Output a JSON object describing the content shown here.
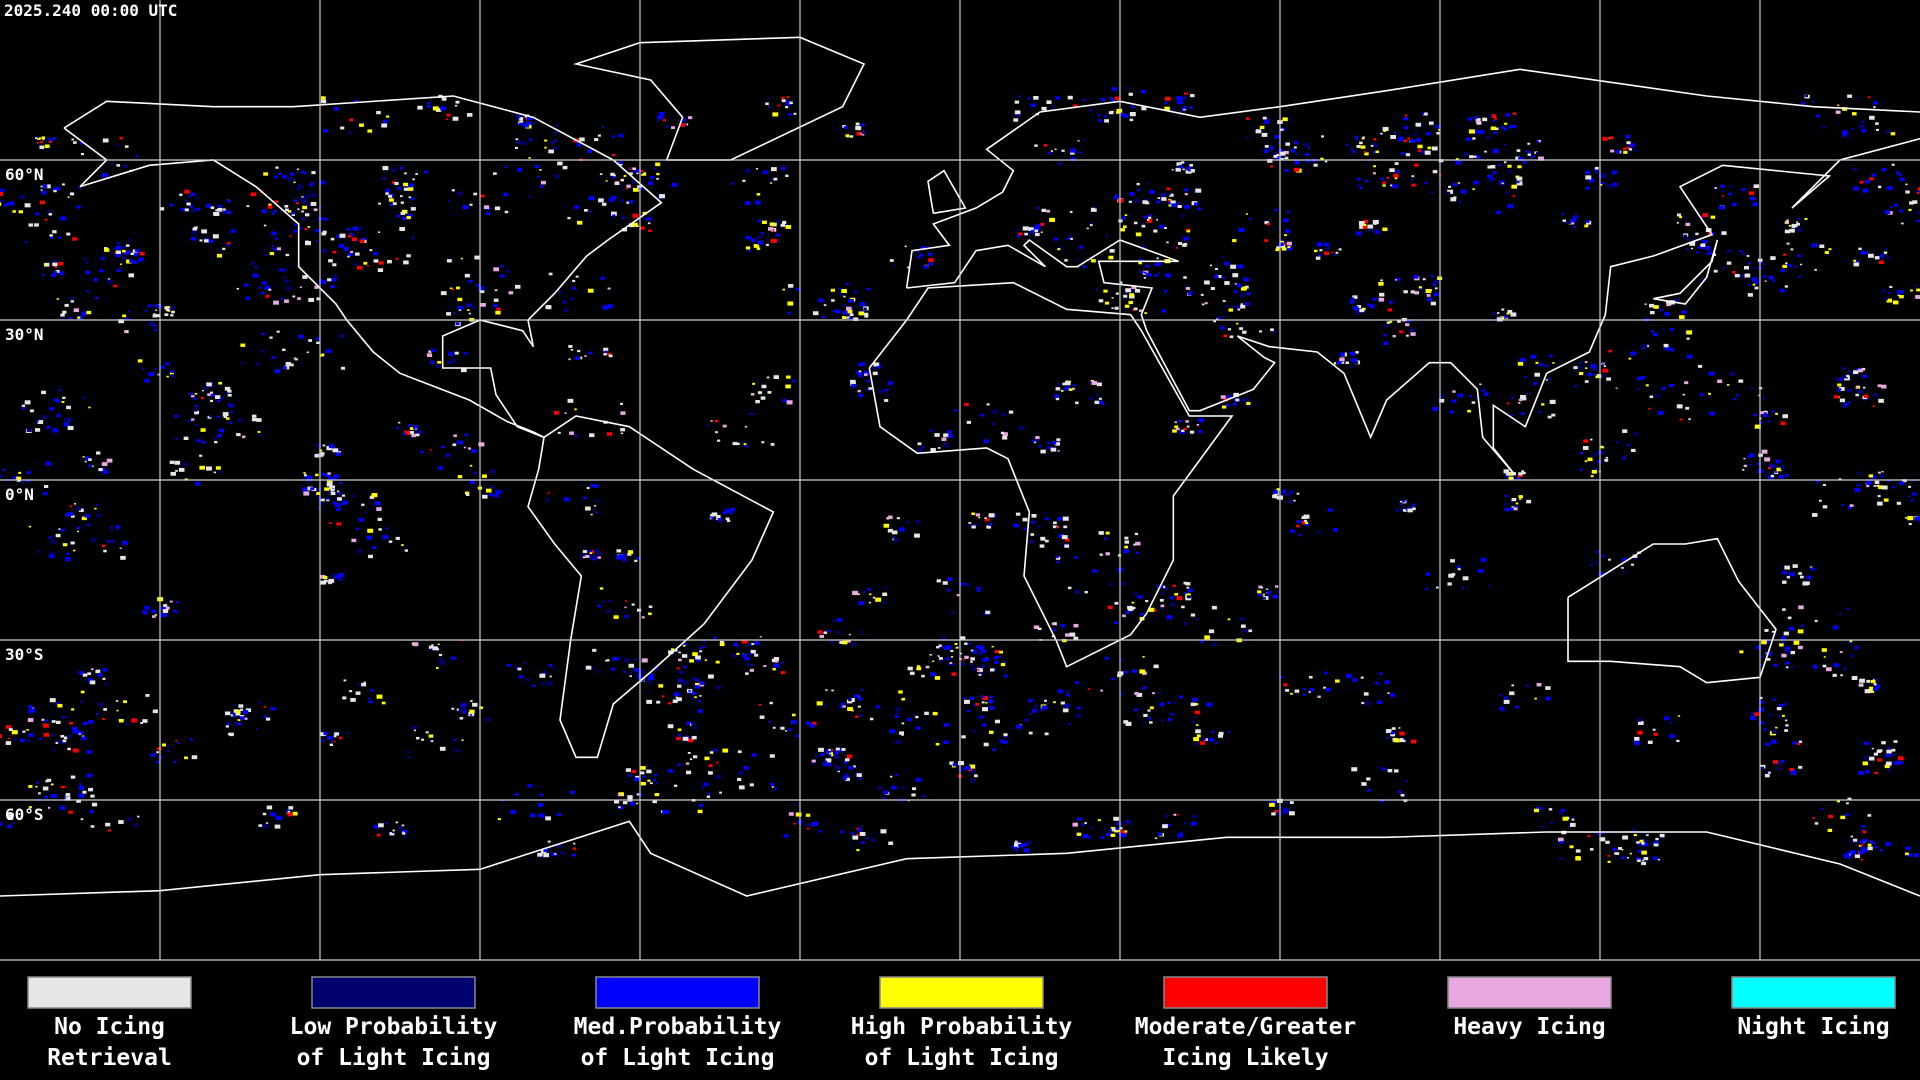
{
  "header": {
    "timestamp": "2025.240 00:00 UTC"
  },
  "map": {
    "latitude_labels": [
      "60°N",
      "30°N",
      "0°N",
      "30°S",
      "60°S"
    ]
  },
  "legend": {
    "items": [
      {
        "label": [
          "No Icing",
          "Retrieval"
        ],
        "color": "#e6e6e6"
      },
      {
        "label": [
          "Low Probability",
          "of Light Icing"
        ],
        "color": "#000070"
      },
      {
        "label": [
          "Med.Probability",
          "of Light Icing"
        ],
        "color": "#0000ff"
      },
      {
        "label": [
          "High Probability",
          "of Light Icing"
        ],
        "color": "#ffff00"
      },
      {
        "label": [
          "Moderate/Greater",
          "Icing Likely"
        ],
        "color": "#ff0000"
      },
      {
        "label": [
          "Heavy Icing"
        ],
        "color": "#e8a8e0"
      },
      {
        "label": [
          "Night Icing"
        ],
        "color": "#00ffff"
      }
    ]
  }
}
